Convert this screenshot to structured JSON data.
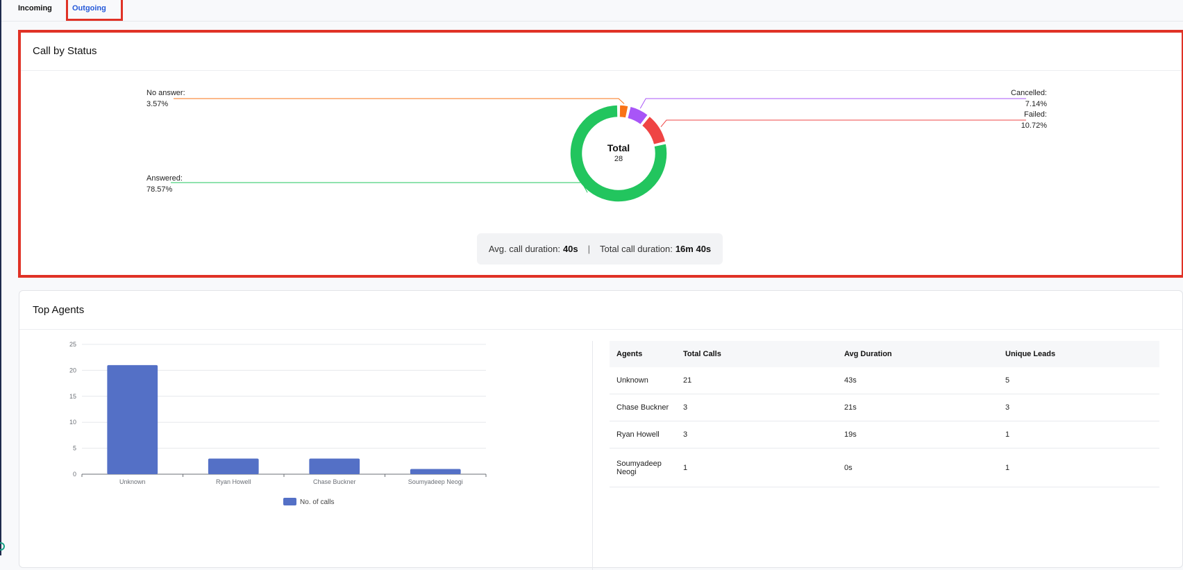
{
  "tabs": [
    {
      "label": "Incoming",
      "active": false
    },
    {
      "label": "Outgoing",
      "active": true
    }
  ],
  "call_status": {
    "title": "Call by Status",
    "center_label": "Total",
    "center_value": "28",
    "labels": {
      "no_answer": {
        "name": "No answer:",
        "pct": "3.57%"
      },
      "cancelled": {
        "name": "Cancelled:",
        "pct": "7.14%"
      },
      "failed": {
        "name": "Failed:",
        "pct": "10.72%"
      },
      "answered": {
        "name": "Answered:",
        "pct": "78.57%"
      }
    },
    "avg_label": "Avg. call duration:",
    "avg_value": "40s",
    "total_label": "Total call duration:",
    "total_value": "16m 40s",
    "separator": "|"
  },
  "top_agents": {
    "title": "Top Agents",
    "table": {
      "headers": [
        "Agents",
        "Total Calls",
        "Avg Duration",
        "Unique Leads"
      ],
      "rows": [
        [
          "Unknown",
          "21",
          "43s",
          "5"
        ],
        [
          "Chase Buckner",
          "3",
          "21s",
          "3"
        ],
        [
          "Ryan Howell",
          "3",
          "19s",
          "1"
        ],
        [
          "Soumyadeep Neogi",
          "1",
          "0s",
          "1"
        ]
      ]
    }
  },
  "chart_data": [
    {
      "type": "pie",
      "title": "Call by Status",
      "labels": [
        "Answered",
        "No answer",
        "Cancelled",
        "Failed"
      ],
      "values": [
        78.57,
        3.57,
        7.14,
        10.72
      ],
      "colors": [
        "#22c55e",
        "#f97316",
        "#a855f7",
        "#ef4444"
      ],
      "total": 28
    },
    {
      "type": "bar",
      "categories": [
        "Unknown",
        "Ryan Howell",
        "Chase Buckner",
        "Soumyadeep Neogi"
      ],
      "series": [
        {
          "name": "No. of calls",
          "values": [
            21,
            3,
            3,
            1
          ],
          "color": "#5470c6"
        }
      ],
      "ylim": [
        0,
        25
      ],
      "yticks": [
        0,
        5,
        10,
        15,
        20,
        25
      ],
      "grid": true,
      "legend": "bottom"
    }
  ]
}
